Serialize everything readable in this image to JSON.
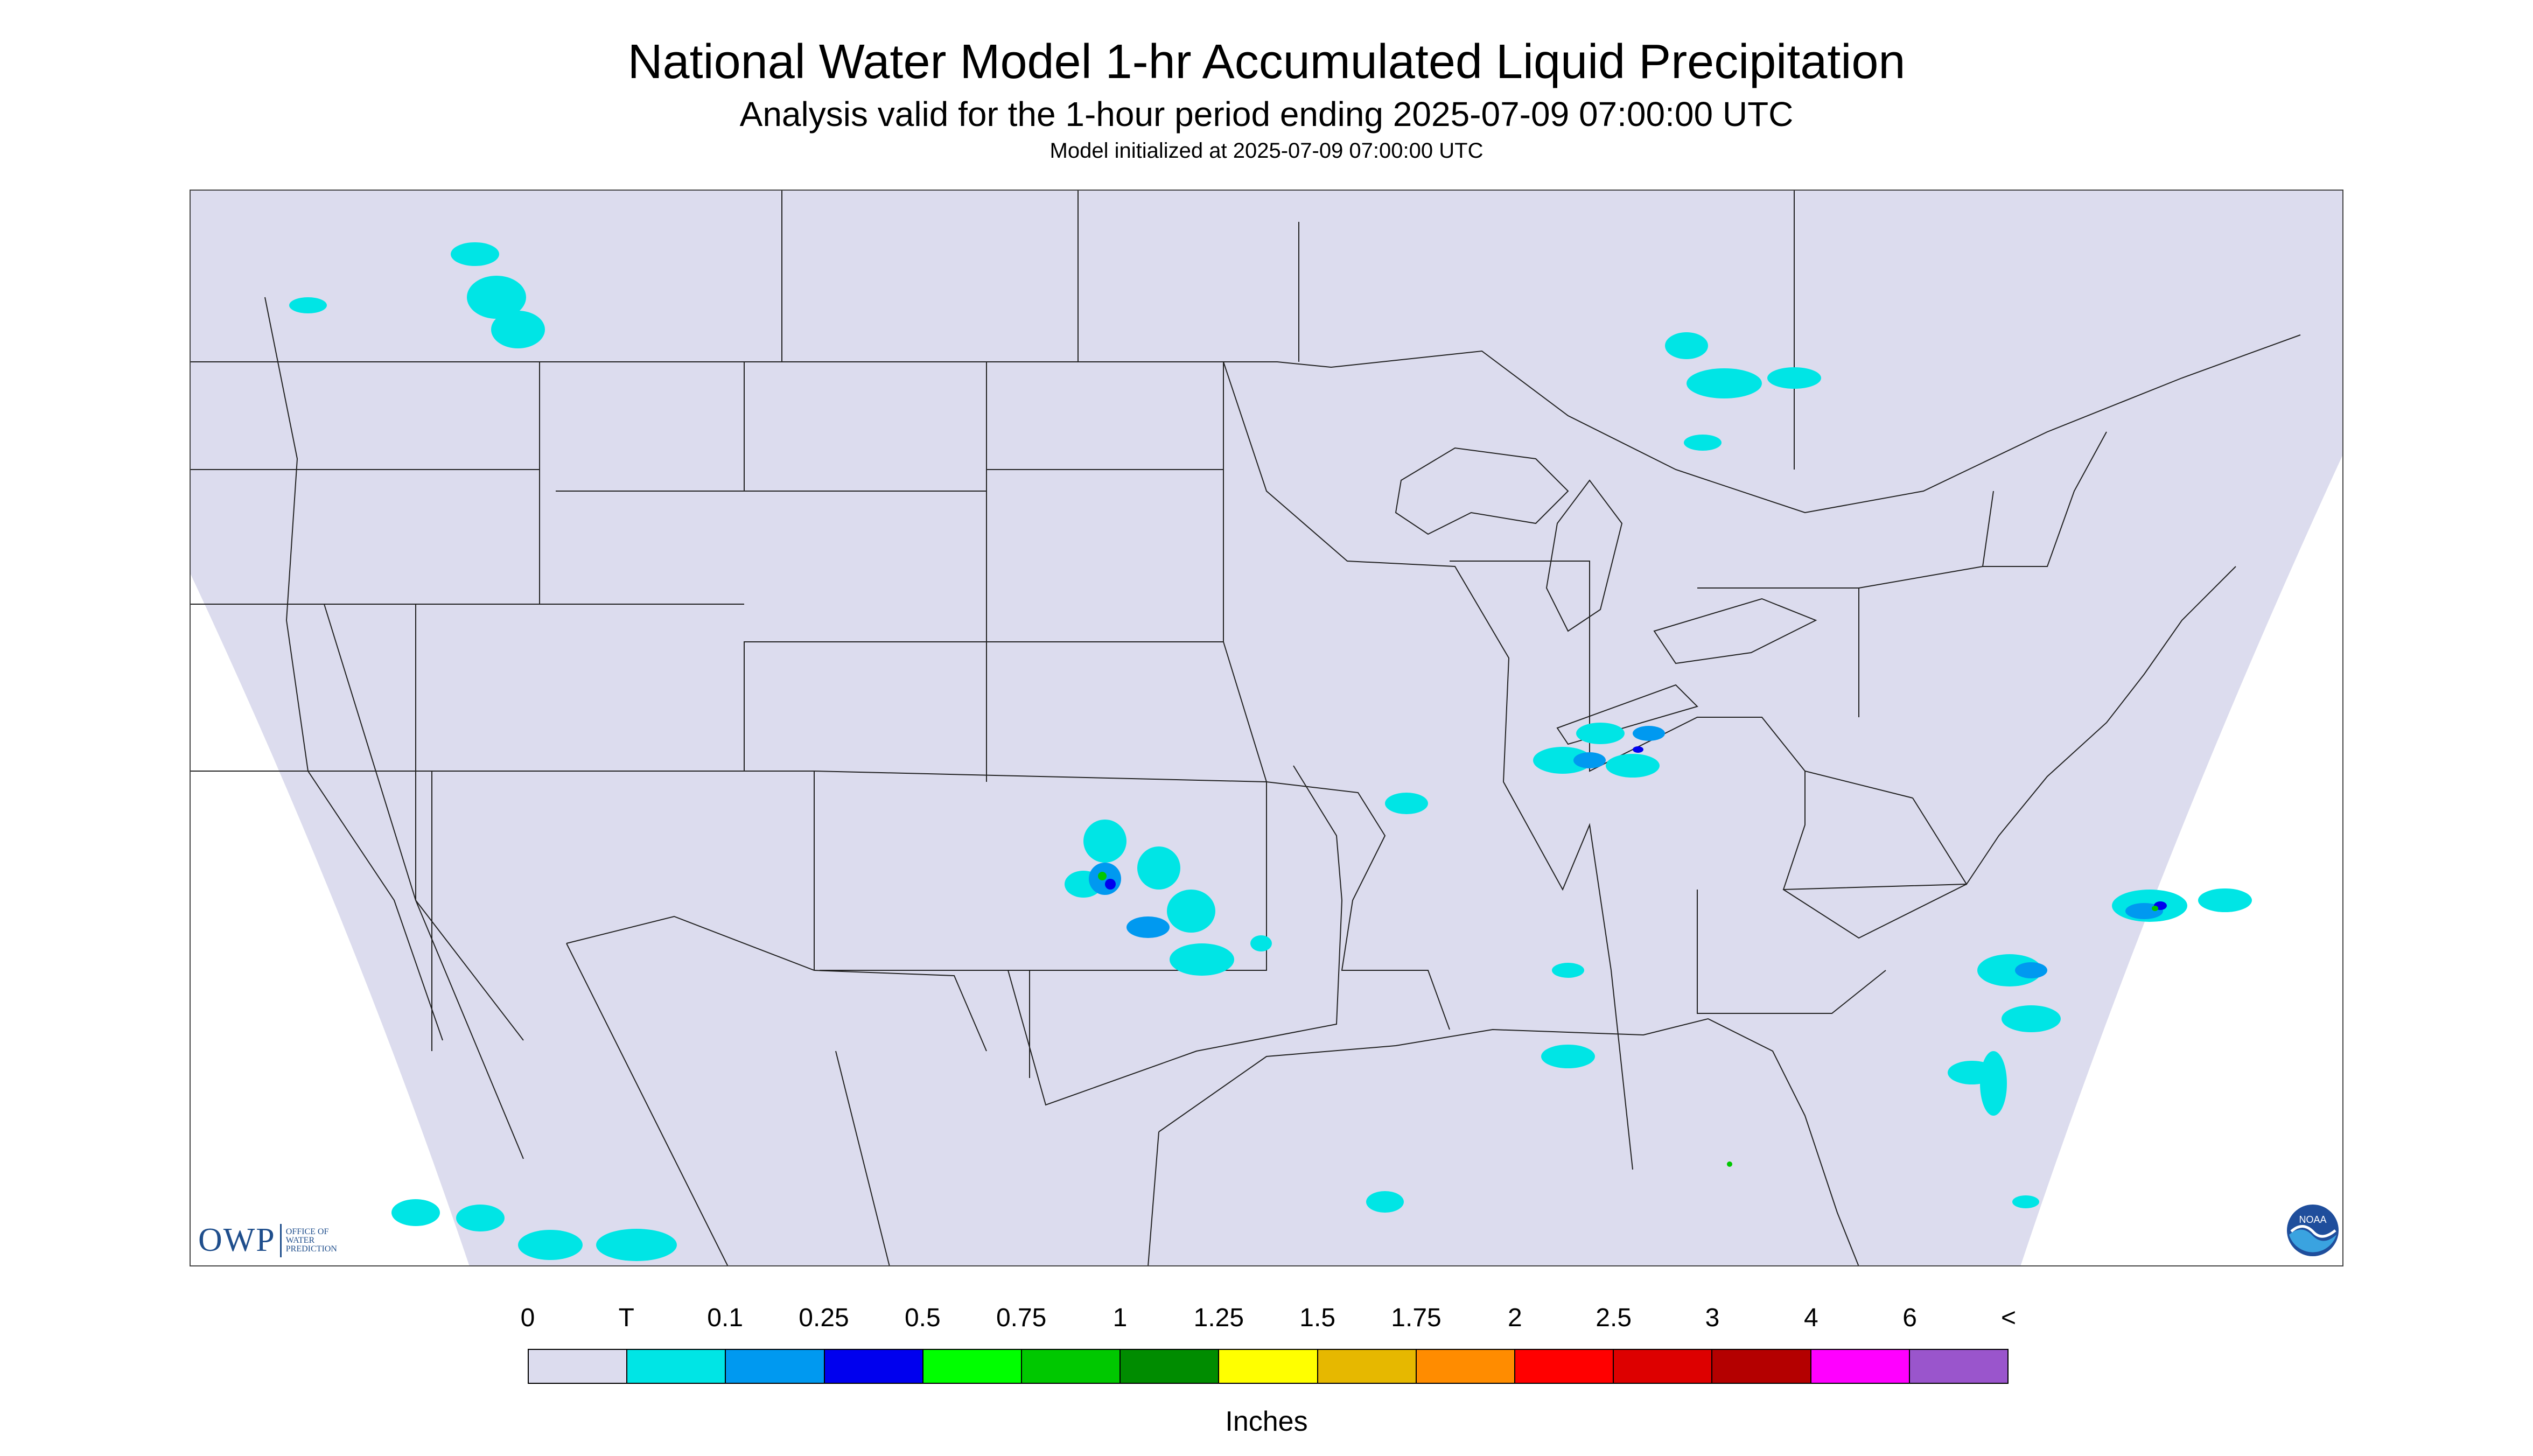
{
  "header": {
    "title": "National Water Model 1-hr Accumulated Liquid Precipitation",
    "subtitle": "Analysis valid for the 1-hour period ending 2025-07-09 07:00:00 UTC",
    "initialized": "Model initialized at 2025-07-09 07:00:00 UTC"
  },
  "logos": {
    "owp_letters": "OWP",
    "owp_line1": "OFFICE OF",
    "owp_line2": "WATER",
    "owp_line3": "PREDICTION",
    "noaa_text": "NOAA"
  },
  "colors": {
    "map_background": "#dcdcee",
    "outside_domain": "#ffffff",
    "boundaries": "#222222"
  },
  "legend": {
    "units": "Inches",
    "labels": [
      "0",
      "T",
      "0.1",
      "0.25",
      "0.5",
      "0.75",
      "1",
      "1.25",
      "1.5",
      "1.75",
      "2",
      "2.5",
      "3",
      "4",
      "6",
      "<"
    ],
    "colors": [
      "#dcdcee",
      "#00e5e5",
      "#0099f0",
      "#0000ee",
      "#00ff00",
      "#00c800",
      "#008c00",
      "#ffff00",
      "#e6b800",
      "#ff8c00",
      "#ff0000",
      "#dd0000",
      "#b40000",
      "#ff00ff",
      "#9a55cc"
    ]
  }
}
